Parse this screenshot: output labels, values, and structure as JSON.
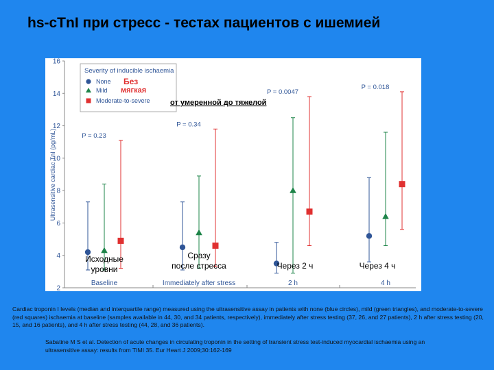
{
  "slide_title": "hs-cTnI при стресс - тестах пациентов с ишемией",
  "colors": {
    "background": "#1f86ee",
    "none": "#2f5597",
    "mild": "#1e8449",
    "moderate": "#e03030"
  },
  "chart_data": {
    "type": "scatter",
    "ylabel": "Ultrasensitive cardiac TnI (pg/mL)",
    "ylim": [
      2,
      16
    ],
    "yticks": [
      2,
      4,
      6,
      8,
      10,
      12,
      14,
      16
    ],
    "categories": [
      "Baseline",
      "Immediately after stress",
      "2 h",
      "4 h"
    ],
    "category_labels_ru": [
      "Исходные уровни",
      "Сразу после стресса",
      "Через 2 ч",
      "Через 4 ч"
    ],
    "legend": {
      "title": "Severity of inducible ischaemia",
      "entries": [
        "None",
        "Mild",
        "Moderate-to-severe"
      ],
      "entries_ru": [
        "Без",
        "мягкая",
        "от умеренной  до тяжелой"
      ]
    },
    "p_values": [
      "P = 0.23",
      "P = 0.34",
      "P = 0.0047",
      "P = 0.018"
    ],
    "series": [
      {
        "name": "None",
        "marker": "circle",
        "median": [
          4.2,
          4.5,
          3.5,
          5.2
        ],
        "q1": [
          3.1,
          3.1,
          2.9,
          3.6
        ],
        "q3": [
          7.3,
          7.3,
          4.8,
          8.8
        ]
      },
      {
        "name": "Mild",
        "marker": "triangle",
        "median": [
          4.3,
          5.4,
          8.0,
          6.4
        ],
        "q1": [
          3.1,
          3.2,
          2.9,
          4.6
        ],
        "q3": [
          8.4,
          8.9,
          12.5,
          11.6
        ]
      },
      {
        "name": "Moderate-to-severe",
        "marker": "square",
        "median": [
          4.9,
          4.6,
          6.7,
          8.4
        ],
        "q1": [
          3.2,
          3.3,
          4.6,
          5.6
        ],
        "q3": [
          11.1,
          11.8,
          13.8,
          14.1
        ]
      }
    ]
  },
  "caption": "Cardiac troponin I levels (median and interquartile range) measured using the ultrasensitive assay in patients with none (blue circles), mild (green triangles), and moderate-to-severe (red squares) ischaemia at baseline (samples available in 44, 30, and 34 patients, respectively), immediately after stress testing (37, 26, and 27 patients), 2 h after stress testing (20, 15, and 16 patients), and 4 h after stress testing (44, 28, and 36 patients).",
  "reference": "Sabatine M S et al. Detection of acute changes in circulating troponin in the setting of transient stress test-induced myocardial ischaemia using an ultrasensitive assay: results from TIMI 35. Eur Heart J 2009;30:162-169"
}
